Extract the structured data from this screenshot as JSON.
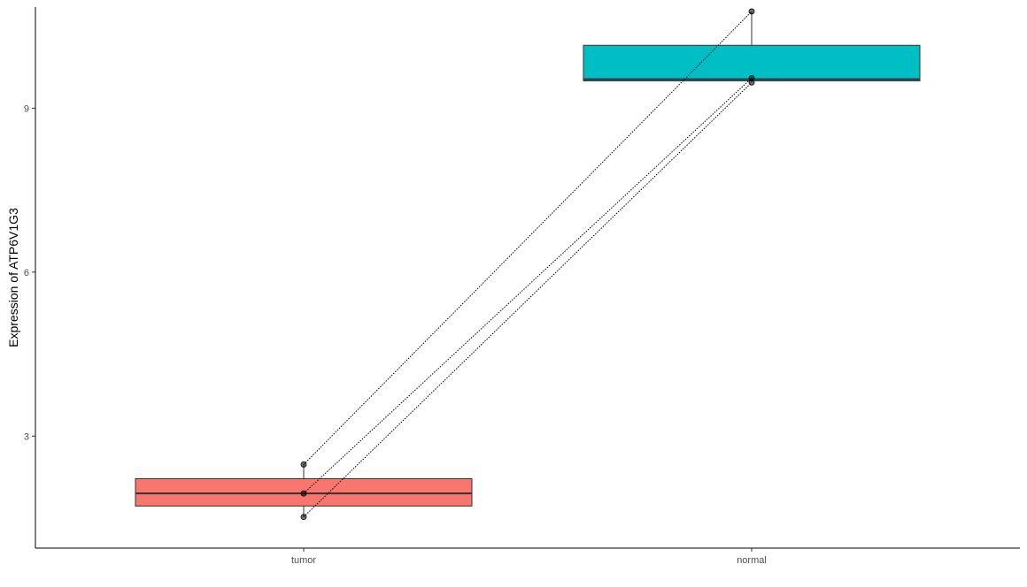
{
  "chart_data": {
    "type": "boxplot-paired",
    "title": "",
    "xlabel": "",
    "ylabel": "Expression of  ATP6V1G3",
    "ylim": [
      0.95,
      10.85
    ],
    "yticks": [
      3,
      6,
      9
    ],
    "ytick_labels": [
      "3",
      "6",
      "9"
    ],
    "categories": [
      "tumor",
      "normal"
    ],
    "boxes": [
      {
        "name": "tumor",
        "color": "#F8766D",
        "min": 1.52,
        "q1": 1.72,
        "median": 1.95,
        "q3": 2.22,
        "max": 2.48
      },
      {
        "name": "normal",
        "color": "#00BFC4",
        "min": 9.47,
        "q1": 9.5,
        "median": 9.53,
        "q3": 10.15,
        "max": 10.77
      }
    ],
    "pairs": [
      {
        "tumor": 2.48,
        "normal": 10.77
      },
      {
        "tumor": 1.95,
        "normal": 9.55
      },
      {
        "tumor": 1.52,
        "normal": 9.47
      }
    ],
    "grid": false,
    "legend": "none"
  }
}
